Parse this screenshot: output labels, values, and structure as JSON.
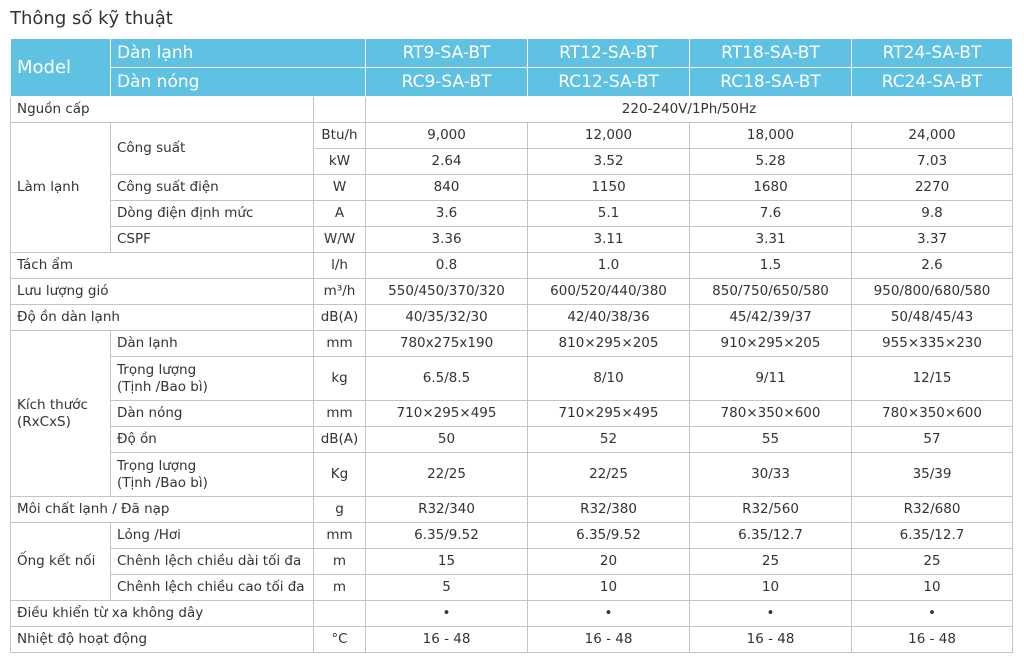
{
  "header": {
    "title": "Thông số kỹ thuật"
  },
  "table": {
    "head": {
      "model": "Model",
      "indoor": "Dàn lạnh",
      "outdoor": "Dàn nóng",
      "indoor_models": [
        "RT9-SA-BT",
        "RT12-SA-BT",
        "RT18-SA-BT",
        "RT24-SA-BT"
      ],
      "outdoor_models": [
        "RC9-SA-BT",
        "RC12-SA-BT",
        "RC18-SA-BT",
        "RC24-SA-BT"
      ]
    },
    "sections": [
      {
        "label": "Nguồn cấp",
        "value": "220-240V/1Ph/50Hz"
      },
      {
        "label": "Làm lạnh",
        "items": [
          {
            "label": "Công suất",
            "lines": [
              {
                "unit": "Btu/h",
                "values": [
                  "9,000",
                  "12,000",
                  "18,000",
                  "24,000"
                ]
              },
              {
                "unit": "kW",
                "values": [
                  "2.64",
                  "3.52",
                  "5.28",
                  "7.03"
                ]
              }
            ]
          },
          {
            "label": "Công suất điện",
            "unit": "W",
            "values": [
              "840",
              "1150",
              "1680",
              "2270"
            ]
          },
          {
            "label": "Dòng điện định mức",
            "unit": "A",
            "values": [
              "3.6",
              "5.1",
              "7.6",
              "9.8"
            ]
          },
          {
            "label": "CSPF",
            "unit": "W/W",
            "values": [
              "3.36",
              "3.11",
              "3.31",
              "3.37"
            ]
          }
        ]
      },
      {
        "label": "Tách ẩm",
        "unit": "l/h",
        "values": [
          "0.8",
          "1.0",
          "1.5",
          "2.6"
        ]
      },
      {
        "label": "Lưu lượng gió",
        "unit": "m³/h",
        "values": [
          "550/450/370/320",
          "600/520/440/380",
          "850/750/650/580",
          "950/800/680/580"
        ]
      },
      {
        "label": "Độ ồn dàn lạnh",
        "unit": "dB(A)",
        "values": [
          "40/35/32/30",
          "42/40/38/36",
          "45/42/39/37",
          "50/48/45/43"
        ]
      },
      {
        "label": "Kích thước\n(RxCxS)",
        "items": [
          {
            "label": "Dàn lạnh",
            "unit": "mm",
            "values": [
              "780x275x190",
              "810×295×205",
              "910×295×205",
              "955×335×230"
            ]
          },
          {
            "label": "Trọng lượng\n(Tịnh /Bao bì)",
            "unit": "kg",
            "values": [
              "6.5/8.5",
              "8/10",
              "9/11",
              "12/15"
            ]
          },
          {
            "label": "Dàn nóng",
            "unit": "mm",
            "values": [
              "710×295×495",
              "710×295×495",
              "780×350×600",
              "780×350×600"
            ]
          },
          {
            "label": "Độ ồn",
            "unit": "dB(A)",
            "values": [
              "50",
              "52",
              "55",
              "57"
            ]
          },
          {
            "label": "Trọng lượng\n(Tịnh /Bao bì)",
            "unit": "Kg",
            "values": [
              "22/25",
              "22/25",
              "30/33",
              "35/39"
            ]
          }
        ]
      },
      {
        "label": "Môi chất lạnh / Đã nạp",
        "unit": "g",
        "values": [
          "R32/340",
          "R32/380",
          "R32/560",
          "R32/680"
        ]
      },
      {
        "label": "Ống kết nối",
        "items": [
          {
            "label": "Lỏng /Hơi",
            "unit": "mm",
            "values": [
              "6.35/9.52",
              "6.35/9.52",
              "6.35/12.7",
              "6.35/12.7"
            ]
          },
          {
            "label": "Chênh lệch chiều dài tối đa",
            "unit": "m",
            "values": [
              "15",
              "20",
              "25",
              "25"
            ]
          },
          {
            "label": "Chênh lệch chiều cao tối đa",
            "unit": "m",
            "values": [
              "5",
              "10",
              "10",
              "10"
            ]
          }
        ]
      },
      {
        "label": "Điều khiển từ xa không dây",
        "values": [
          "•",
          "•",
          "•",
          "•"
        ]
      },
      {
        "label": "Nhiệt độ hoạt động",
        "unit": "°C",
        "values": [
          "16 - 48",
          "16 - 48",
          "16 - 48",
          "16 - 48"
        ]
      }
    ]
  }
}
